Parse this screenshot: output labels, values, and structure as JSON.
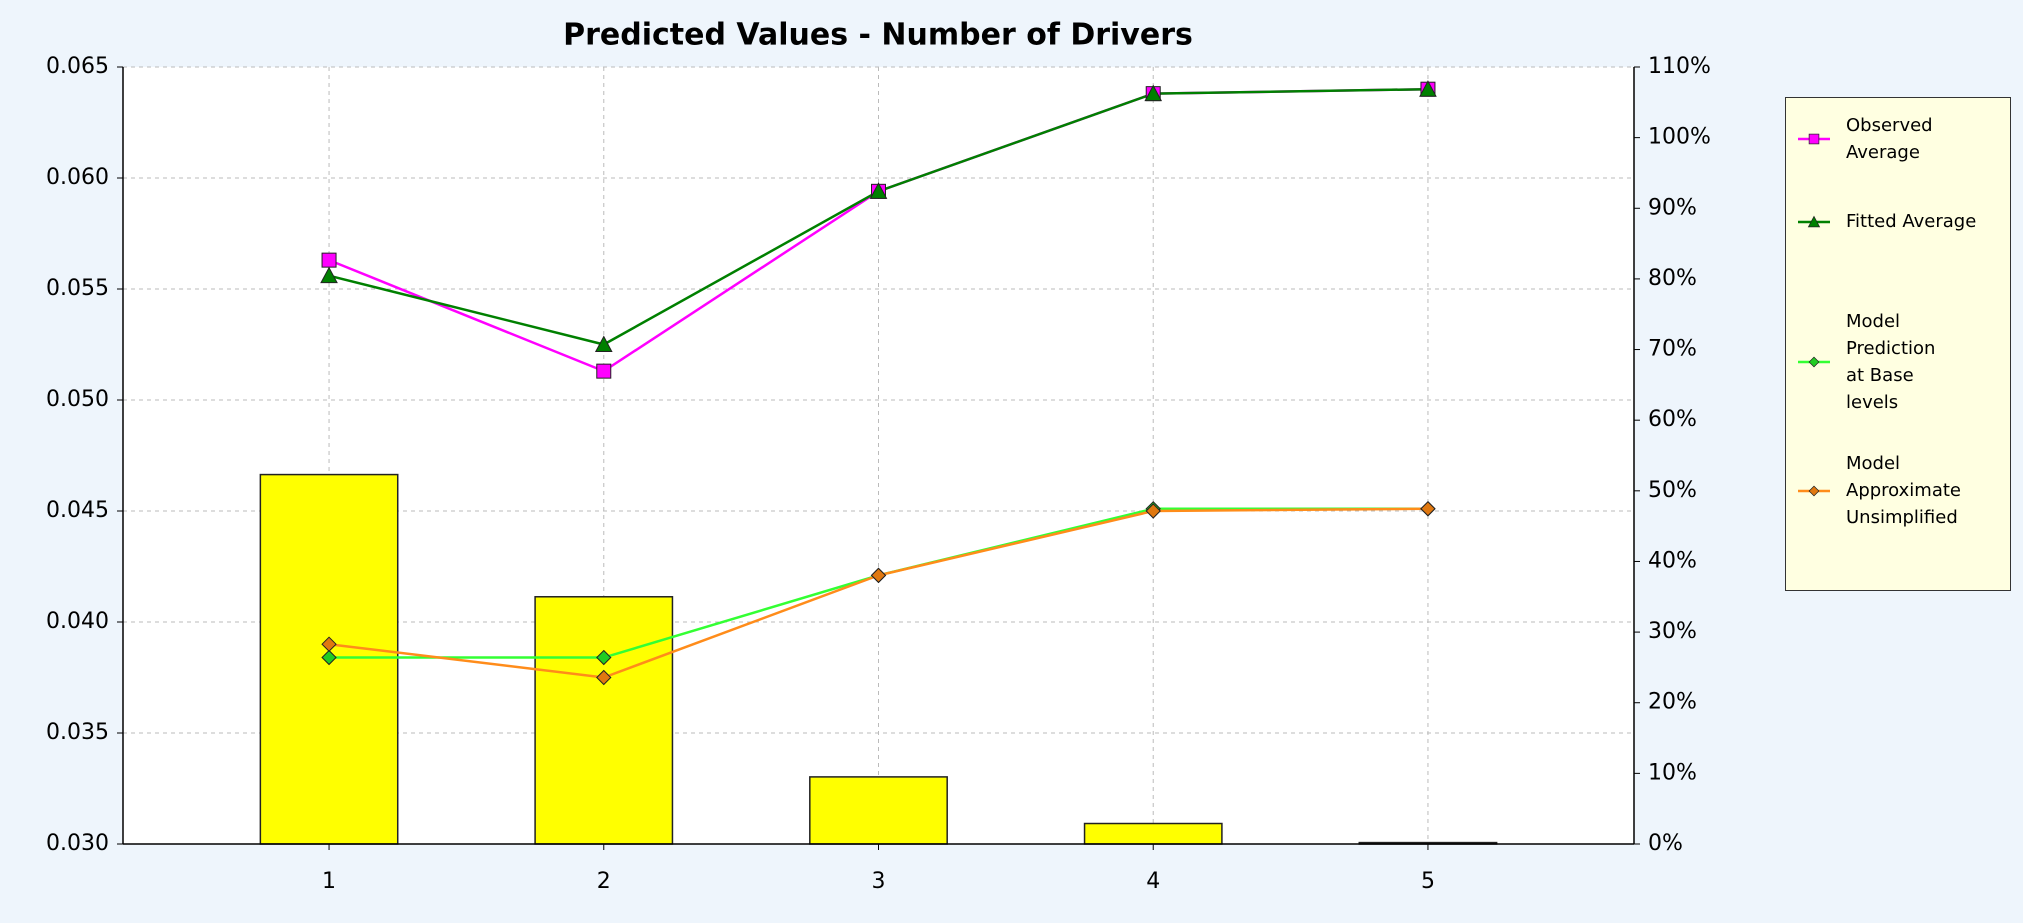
{
  "chart_data": {
    "type": "combo",
    "title": "Predicted Values - Number of Drivers",
    "categories": [
      "1",
      "2",
      "3",
      "4",
      "5"
    ],
    "ylim": [
      0.03,
      0.065
    ],
    "yticks": [
      {
        "value": 0.03,
        "label": "0.030"
      },
      0.035,
      {
        "value": 0.04,
        "label": "0.040"
      },
      0.045,
      {
        "value": 0.05,
        "label": "0.050"
      },
      0.055,
      {
        "value": 0.06,
        "label": "0.060"
      },
      0.065
    ],
    "y2lim": [
      0,
      110
    ],
    "y2ticks": [
      {
        "value": 0,
        "label": "0%"
      },
      {
        "value": 10,
        "label": "10%"
      },
      {
        "value": 20,
        "label": "20%"
      },
      {
        "value": 30,
        "label": "30%"
      },
      {
        "value": 40,
        "label": "40%"
      },
      {
        "value": 50,
        "label": "50%"
      },
      {
        "value": 60,
        "label": "60%"
      },
      {
        "value": 70,
        "label": "70%"
      },
      {
        "value": 80,
        "label": "80%"
      },
      {
        "value": 90,
        "label": "90%"
      },
      {
        "value": 100,
        "label": "100%"
      },
      {
        "value": 110,
        "label": "110%"
      }
    ],
    "grid": true,
    "legend": "right",
    "series": [
      {
        "type": "bar",
        "axis": "y2",
        "color": "#ffff00",
        "values": [
          52.3,
          35.0,
          9.5,
          2.9,
          0.2
        ]
      },
      {
        "type": "line",
        "name": "Observed Average",
        "color": "#ff00ff",
        "marker": "square",
        "values": [
          0.0563,
          0.0513,
          0.0594,
          0.0638,
          0.064
        ]
      },
      {
        "type": "line",
        "name": "Fitted Average",
        "color": "#008000",
        "marker": "triangle",
        "values": [
          0.0556,
          0.0525,
          0.0594,
          0.0638,
          0.064
        ]
      },
      {
        "type": "line",
        "name": "Model Prediction at Base levels",
        "color": "#33ff33",
        "marker": "diamond",
        "values": [
          0.0384,
          0.0384,
          0.0421,
          0.0451,
          0.0451
        ]
      },
      {
        "type": "line",
        "name": "Model Approximate Unsimplified",
        "color": "#ff8c1a",
        "marker": "diamond",
        "values": [
          0.039,
          0.0375,
          0.0421,
          0.045,
          0.0451
        ]
      }
    ]
  }
}
